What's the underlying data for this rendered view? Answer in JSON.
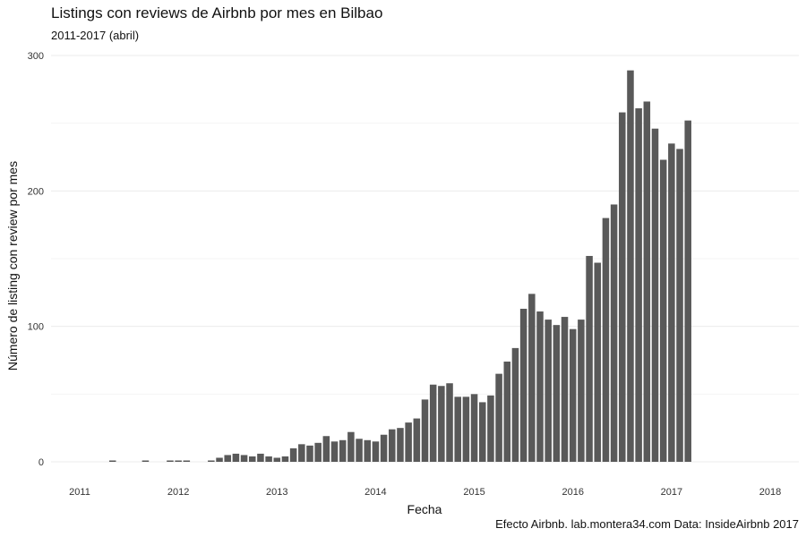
{
  "chart_data": {
    "type": "bar",
    "title": "Listings con reviews de Airbnb por mes en Bilbao",
    "subtitle": "2011-2017 (abril)",
    "xlabel": "Fecha",
    "ylabel": "Número de listing con review por mes",
    "caption": "Efecto Airbnb. lab.montera34.com Data: InsideAirbnb 2017",
    "bar_color": "#595959",
    "grid_color": "#ebebeb",
    "grid": true,
    "ylim": [
      0,
      300
    ],
    "y_ticks": [
      0,
      100,
      200,
      300
    ],
    "x_range": [
      "2011-01",
      "2018-01"
    ],
    "x_ticks": [
      "2011",
      "2012",
      "2013",
      "2014",
      "2015",
      "2016",
      "2017",
      "2018"
    ],
    "x": [
      "2011-05",
      "2011-09",
      "2011-12",
      "2012-01",
      "2012-02",
      "2012-05",
      "2012-06",
      "2012-07",
      "2012-08",
      "2012-09",
      "2012-10",
      "2012-11",
      "2012-12",
      "2013-01",
      "2013-02",
      "2013-03",
      "2013-04",
      "2013-05",
      "2013-06",
      "2013-07",
      "2013-08",
      "2013-09",
      "2013-10",
      "2013-11",
      "2013-12",
      "2014-01",
      "2014-02",
      "2014-03",
      "2014-04",
      "2014-05",
      "2014-06",
      "2014-07",
      "2014-08",
      "2014-09",
      "2014-10",
      "2014-11",
      "2014-12",
      "2015-01",
      "2015-02",
      "2015-03",
      "2015-04",
      "2015-05",
      "2015-06",
      "2015-07",
      "2015-08",
      "2015-09",
      "2015-10",
      "2015-11",
      "2015-12",
      "2016-01",
      "2016-02",
      "2016-03",
      "2016-04",
      "2016-05",
      "2016-06",
      "2016-07",
      "2016-08",
      "2016-09",
      "2016-10",
      "2016-11",
      "2016-12",
      "2017-01",
      "2017-02",
      "2017-03"
    ],
    "values": [
      1,
      1,
      1,
      1,
      1,
      1,
      3,
      5,
      6,
      5,
      4,
      6,
      4,
      3,
      4,
      10,
      13,
      12,
      14,
      19,
      15,
      16,
      22,
      17,
      16,
      15,
      20,
      24,
      25,
      29,
      32,
      46,
      57,
      56,
      58,
      48,
      48,
      50,
      44,
      49,
      65,
      74,
      84,
      113,
      124,
      111,
      105,
      101,
      107,
      98,
      105,
      152,
      147,
      180,
      190,
      258,
      289,
      261,
      266,
      246,
      223,
      235,
      231,
      252
    ]
  }
}
